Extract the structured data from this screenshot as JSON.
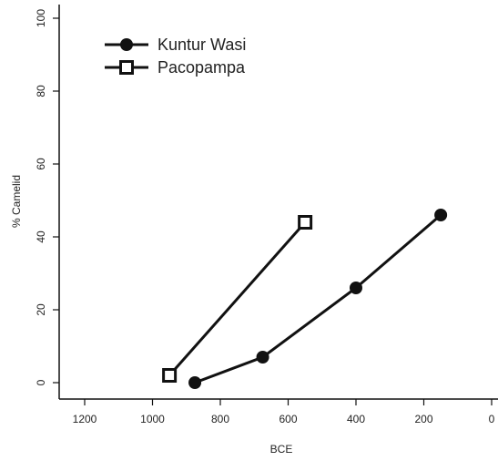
{
  "chart_data": {
    "type": "line",
    "xlabel": "BCE",
    "ylabel": "% Camelid",
    "xlim": [
      1300,
      0
    ],
    "ylim": [
      0,
      100
    ],
    "x_ticks": [
      1200,
      1000,
      800,
      600,
      400,
      200,
      0
    ],
    "y_ticks": [
      0,
      20,
      40,
      60,
      80,
      100
    ],
    "legend_position": "top-left",
    "series": [
      {
        "name": "Kuntur Wasi",
        "marker": "filled-circle",
        "points": [
          {
            "x": 875,
            "y": 0
          },
          {
            "x": 675,
            "y": 7
          },
          {
            "x": 400,
            "y": 26
          },
          {
            "x": 150,
            "y": 46
          }
        ]
      },
      {
        "name": "Pacopampa",
        "marker": "open-square",
        "points": [
          {
            "x": 950,
            "y": 2
          },
          {
            "x": 550,
            "y": 44
          }
        ]
      }
    ],
    "colors": {
      "line": "#111111",
      "axis": "#111111",
      "background": "#ffffff"
    }
  }
}
